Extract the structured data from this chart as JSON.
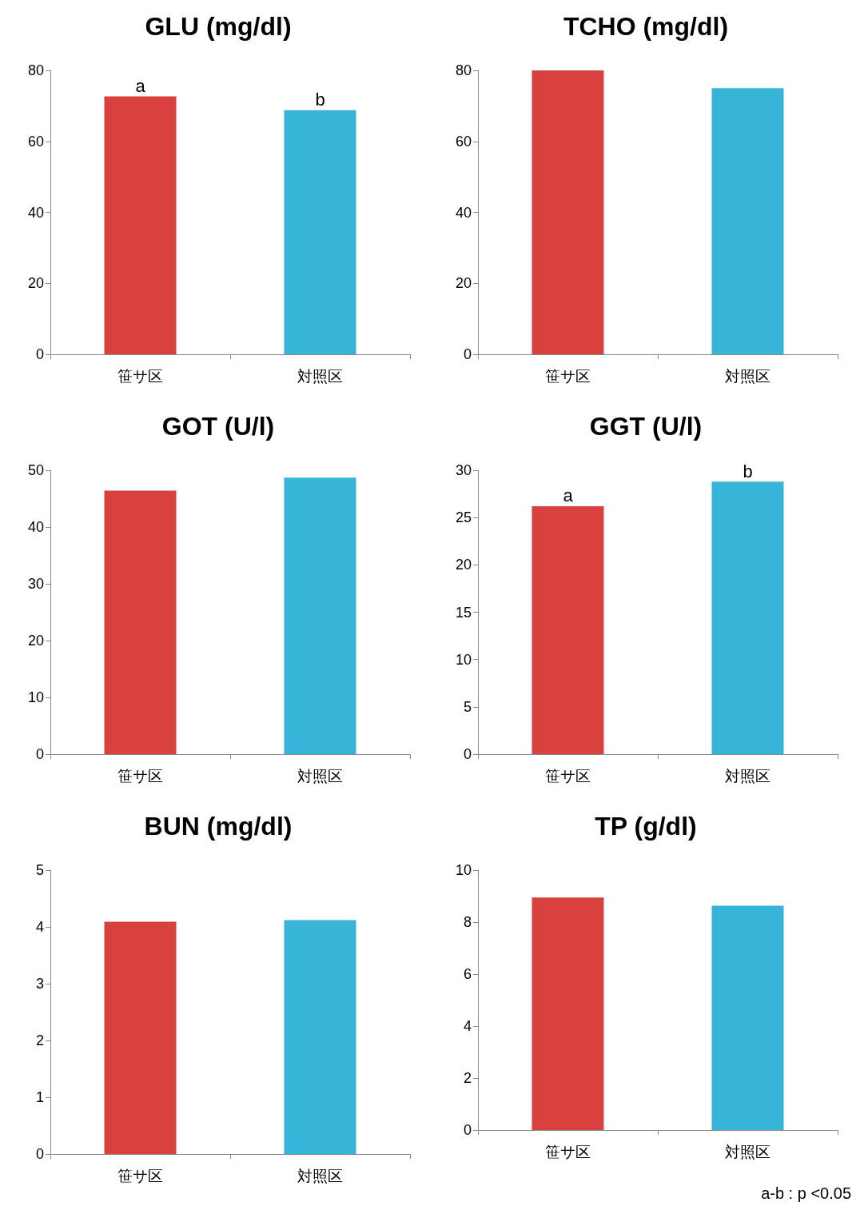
{
  "chart_data": [
    {
      "type": "bar",
      "title": "GLU (mg/dl)",
      "categories": [
        "笹サ区",
        "対照区"
      ],
      "values": [
        72.7,
        68.8
      ],
      "colors": [
        "#d9413e",
        "#36b5d8"
      ],
      "ylim": [
        0,
        80
      ],
      "yticks": [
        0,
        20,
        40,
        60,
        80
      ],
      "annotations": [
        {
          "text": "a",
          "x": "笹サ区",
          "y": 72.7
        },
        {
          "text": "b",
          "x": "対照区",
          "y": 68.8
        }
      ]
    },
    {
      "type": "bar",
      "title": "TCHO (mg/dl)",
      "categories": [
        "笹サ区",
        "対照区"
      ],
      "values": [
        80,
        75.0
      ],
      "colors": [
        "#d9413e",
        "#36b5d8"
      ],
      "ylim": [
        0,
        80
      ],
      "yticks": [
        0,
        20,
        40,
        60,
        80
      ]
    },
    {
      "type": "bar",
      "title": "GOT (U/l)",
      "categories": [
        "笹サ区",
        "対照区"
      ],
      "values": [
        46.4,
        48.7
      ],
      "colors": [
        "#d9413e",
        "#36b5d8"
      ],
      "ylim": [
        0,
        50
      ],
      "yticks": [
        0,
        10,
        20,
        30,
        40,
        50
      ]
    },
    {
      "type": "bar",
      "title": "GGT (U/l)",
      "categories": [
        "笹サ区",
        "対照区"
      ],
      "values": [
        26.2,
        28.8
      ],
      "colors": [
        "#d9413e",
        "#36b5d8"
      ],
      "ylim": [
        0,
        30
      ],
      "yticks": [
        0,
        5,
        10,
        15,
        20,
        25,
        30
      ],
      "annotations": [
        {
          "text": "a",
          "x": "笹サ区",
          "y": 26.2
        },
        {
          "text": "b",
          "x": "対照区",
          "y": 28.8
        }
      ]
    },
    {
      "type": "bar",
      "title": "BUN (mg/dl)",
      "categories": [
        "笹サ区",
        "対照区"
      ],
      "values": [
        4.09,
        4.12
      ],
      "colors": [
        "#d9413e",
        "#36b5d8"
      ],
      "ylim": [
        0,
        5
      ],
      "yticks": [
        0,
        1,
        2,
        3,
        4,
        5
      ]
    },
    {
      "type": "bar",
      "title": "TP (g/dl)",
      "categories": [
        "笹サ区",
        "対照区"
      ],
      "values": [
        8.95,
        8.63
      ],
      "colors": [
        "#d9413e",
        "#36b5d8"
      ],
      "ylim": [
        0,
        10
      ],
      "yticks": [
        0,
        2,
        4,
        6,
        8,
        10
      ],
      "annotations": [
        "a-b : p <0.05"
      ]
    }
  ]
}
